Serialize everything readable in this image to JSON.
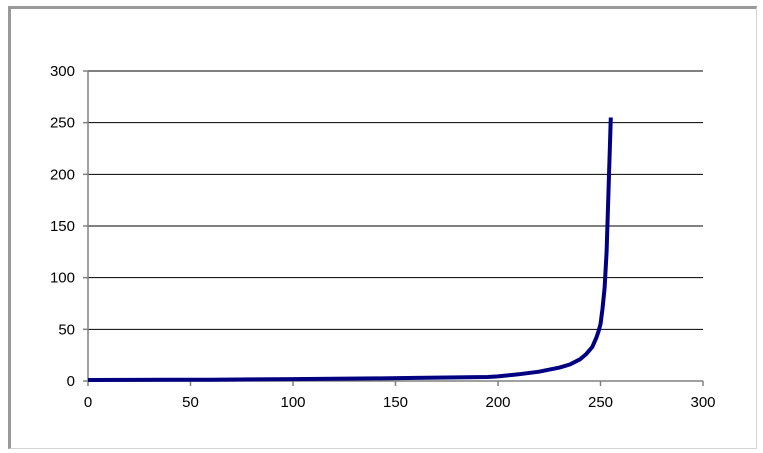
{
  "chart_data": {
    "type": "line",
    "title": "",
    "xlabel": "",
    "ylabel": "",
    "xlim": [
      0,
      300
    ],
    "ylim": [
      0,
      300
    ],
    "x_ticks": [
      "0",
      "50",
      "100",
      "150",
      "200",
      "250",
      "300"
    ],
    "y_ticks": [
      "0",
      "50",
      "100",
      "150",
      "200",
      "250",
      "300"
    ],
    "grid": "horizontal",
    "legend": "none",
    "series": [
      {
        "color": "#000080",
        "x": [
          0,
          20,
          40,
          60,
          80,
          100,
          120,
          140,
          160,
          180,
          195,
          200,
          210,
          220,
          230,
          235,
          240,
          243,
          246,
          248,
          249,
          250,
          251,
          252,
          253,
          254,
          255
        ],
        "y": [
          1,
          1.1,
          1.2,
          1.3,
          1.5,
          1.8,
          2.1,
          2.5,
          3,
          3.5,
          3.9,
          4.5,
          6.5,
          9,
          13,
          16,
          21,
          26,
          33,
          42,
          48,
          55,
          70,
          90,
          125,
          190,
          255
        ]
      }
    ]
  }
}
